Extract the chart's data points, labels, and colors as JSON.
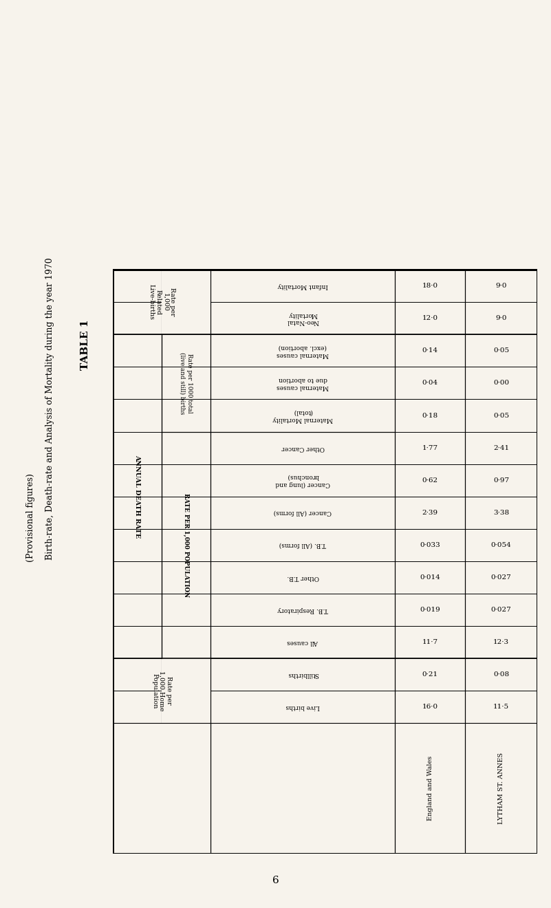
{
  "title": "TABLE 1",
  "subtitle1": "Birth-rate, Death-rate and Analysis of Mortality during the year 1970",
  "subtitle2": "(Provisional figures)",
  "page_number": "6",
  "bg_color": "#f7f3ec",
  "row_labels": [
    "England and Wales",
    "LYTHAM ST. ANNES"
  ],
  "sections": [
    {
      "group_header": "Rate per\n1,000\nRelated\nLive-births",
      "sub_header": null,
      "rows": [
        {
          "label": "Neo-Natal\nMortality",
          "vals": [
            "12·0",
            "9·0"
          ],
          "label_rot": 180
        },
        {
          "label": "Infant Mortality",
          "vals": [
            "18·0",
            "9·0"
          ],
          "label_rot": 180
        }
      ]
    },
    {
      "group_header": "ANNUAL DEATH RATE",
      "sub_header_a": "Rate per 1000 total\n(live and still) births",
      "sub_header_b": "RATE PER 1,000 POPULATION",
      "rows_a": [
        {
          "label": "Maternal causes\n(excl. abortion)",
          "vals": [
            "0·14",
            "0·05"
          ],
          "label_rot": 180
        },
        {
          "label": "Maternal causes\ndue to abortion",
          "vals": [
            "0·04",
            "0·00"
          ],
          "label_rot": 180
        },
        {
          "label": "Maternal Mortality\n(total)",
          "vals": [
            "0·18",
            "0·05"
          ],
          "label_rot": 180
        }
      ],
      "rows_b": [
        {
          "label": "Other Cancer",
          "vals": [
            "1·77",
            "2·41"
          ],
          "label_rot": 180
        },
        {
          "label": "Cancer (lung and\nbronchus)",
          "vals": [
            "0·62",
            "0·97"
          ],
          "label_rot": 180
        },
        {
          "label": "Cancer (All forms)",
          "vals": [
            "2·39",
            "3·38"
          ],
          "label_rot": 180
        },
        {
          "label": "T.B. (All forms)",
          "vals": [
            "0·033",
            "0·054"
          ],
          "label_rot": 180
        },
        {
          "label": "Other T.B.",
          "vals": [
            "0·014",
            "0·027"
          ],
          "label_rot": 180
        },
        {
          "label": "T.B. Respiratory",
          "vals": [
            "0·019",
            "0·027"
          ],
          "label_rot": 180
        },
        {
          "label": "All causes",
          "vals": [
            "11·7",
            "12·3"
          ],
          "label_rot": 180
        }
      ]
    },
    {
      "group_header": "Rate per\n1,000 Home\nPopulation",
      "sub_header": null,
      "rows": [
        {
          "label": "Stillbirths",
          "vals": [
            "0·21",
            "0·08"
          ],
          "label_rot": 180
        },
        {
          "label": "Live births",
          "vals": [
            "16·0",
            "11·5"
          ],
          "label_rot": 180
        }
      ]
    }
  ]
}
